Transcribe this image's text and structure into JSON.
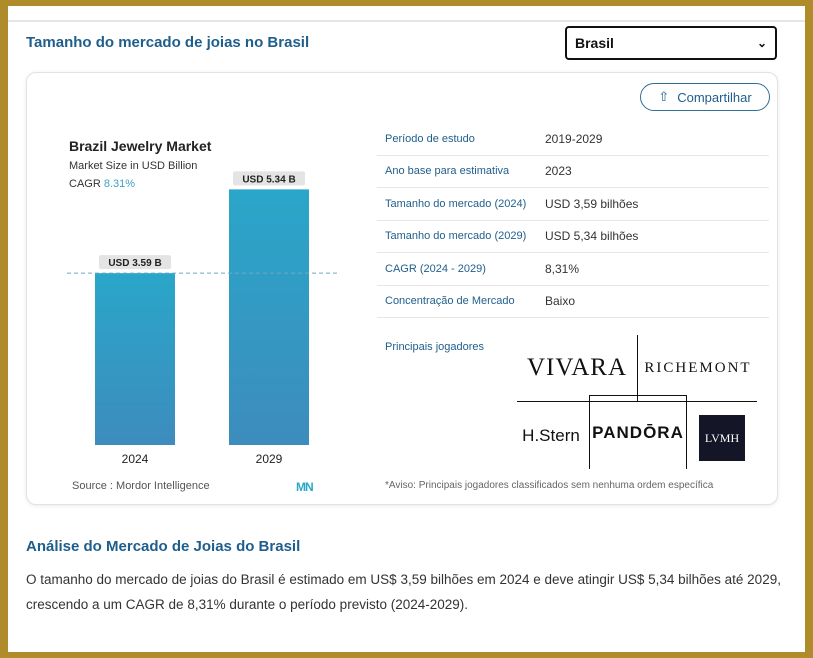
{
  "header": {
    "title": "Tamanho do mercado de joias no Brasil",
    "country_select": "Brasil"
  },
  "share_button": "Compartilhar",
  "chart_data": {
    "type": "bar",
    "title": "Brazil Jewelry Market",
    "subtitle": "Market Size in USD Billion",
    "cagr_label": "CAGR",
    "cagr_value": "8.31%",
    "categories": [
      "2024",
      "2029"
    ],
    "values": [
      3.59,
      5.34
    ],
    "data_labels": [
      "USD 3.59 B",
      "USD 5.34 B"
    ],
    "ylim": [
      0,
      6.1
    ],
    "reference_line": 3.59,
    "colors": {
      "bar_top": "#2aa6c9",
      "bar_bottom": "#3d8cbd",
      "label_bg": "#e4e4e4"
    }
  },
  "source": {
    "label": "Source :",
    "value": "Mordor Intelligence",
    "logo": "MN"
  },
  "stats": [
    {
      "label": "Período de estudo",
      "value": "2019-2029"
    },
    {
      "label": "Ano base para estimativa",
      "value": "2023"
    },
    {
      "label": "Tamanho do mercado (2024)",
      "value": "USD 3,59 bilhões"
    },
    {
      "label": "Tamanho do mercado (2029)",
      "value": "USD 5,34 bilhões"
    },
    {
      "label": "CAGR (2024 - 2029)",
      "value": "8,31%"
    },
    {
      "label": "Concentração de Mercado",
      "value": "Baixo"
    }
  ],
  "players": {
    "label": "Principais jogadores",
    "logos": [
      "VIVARA",
      "RICHEMONT",
      "H.Stern",
      "PANDŌRA",
      "LVMH"
    ],
    "disclaimer": "*Aviso: Principais jogadores classificados sem nenhuma ordem específica"
  },
  "analysis": {
    "title": "Análise do Mercado de Joias do Brasil",
    "text": "O tamanho do mercado de joias do Brasil é estimado em US$ 3,59 bilhões em 2024 e deve atingir US$ 5,34 bilhões até 2029, crescendo a um CAGR de 8,31% durante o período previsto (2024-2029)."
  }
}
